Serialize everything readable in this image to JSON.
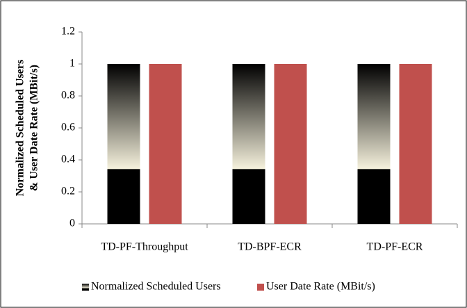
{
  "chart_data": {
    "type": "bar",
    "ylabel": [
      "Normalized Scheduled Users",
      "& User Date Rate (MBit/s)"
    ],
    "categories": [
      "TD-PF-Throughput",
      "TD-BPF-ECR",
      "TD-PF-ECR"
    ],
    "series": [
      {
        "name": "Normalized Scheduled Users",
        "color": "#000000",
        "values": [
          1,
          1,
          1
        ]
      },
      {
        "name": "User Date Rate (MBit/s)",
        "color": "#c0504d",
        "values": [
          1,
          1,
          1
        ]
      }
    ],
    "ylim": [
      0,
      1.2
    ],
    "yticks": [
      0,
      0.2,
      0.4,
      0.6,
      0.8,
      1,
      1.2
    ],
    "grid": false,
    "legend": "bottom"
  }
}
